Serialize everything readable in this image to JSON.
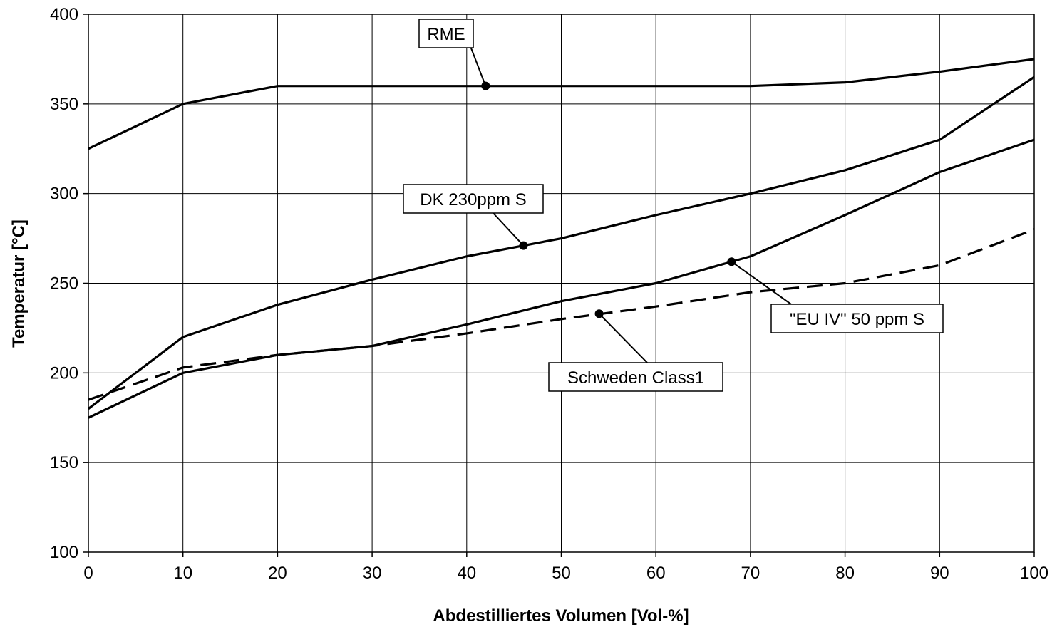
{
  "chart_data": {
    "type": "line",
    "title": "",
    "xlabel": "Abdestilliertes Volumen [Vol-%]",
    "ylabel": "Temperatur [°C]",
    "xlim": [
      0,
      100
    ],
    "ylim": [
      100,
      400
    ],
    "x_ticks": [
      0,
      10,
      20,
      30,
      40,
      50,
      60,
      70,
      80,
      90,
      100
    ],
    "y_ticks": [
      100,
      150,
      200,
      250,
      300,
      350,
      400
    ],
    "grid": true,
    "legend": "none (series labeled with callout boxes)",
    "x": [
      0,
      10,
      20,
      30,
      40,
      50,
      60,
      70,
      80,
      90,
      100
    ],
    "series": [
      {
        "name": "RME",
        "style": "solid",
        "values": [
          325,
          350,
          360,
          360,
          360,
          360,
          360,
          360,
          362,
          368,
          375
        ],
        "callout": {
          "point": [
            42,
            360
          ]
        }
      },
      {
        "name": "DK 230ppm S",
        "style": "solid",
        "values": [
          180,
          220,
          238,
          252,
          265,
          275,
          288,
          300,
          313,
          330,
          365
        ],
        "callout": {
          "point": [
            46,
            271
          ]
        }
      },
      {
        "name": "\"EU IV\" 50 ppm S",
        "style": "solid",
        "values": [
          175,
          200,
          210,
          215,
          227,
          240,
          250,
          265,
          288,
          312,
          330
        ],
        "callout": {
          "point": [
            68,
            262
          ]
        }
      },
      {
        "name": "Schweden Class1",
        "style": "dashed",
        "values": [
          185,
          203,
          210,
          215,
          222,
          230,
          237,
          245,
          250,
          260,
          280
        ],
        "callout": {
          "point": [
            54,
            233
          ]
        }
      }
    ]
  }
}
